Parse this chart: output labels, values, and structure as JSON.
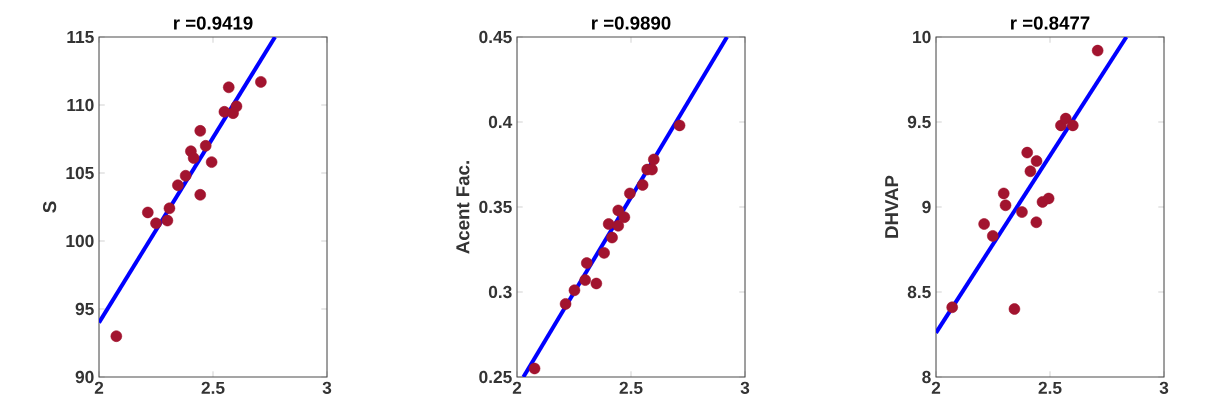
{
  "chart_data": [
    {
      "type": "scatter",
      "marker": "circle",
      "title": "r =0.9419",
      "ylabel": "S",
      "xlim": [
        2,
        3
      ],
      "ylim": [
        90,
        115
      ],
      "xticks": [
        2,
        2.5,
        3
      ],
      "yticks": [
        90,
        95,
        100,
        105,
        110,
        115
      ],
      "series": [
        {
          "color": "#a2142f",
          "x": [
            2.076,
            2.214,
            2.25,
            2.3,
            2.309,
            2.346,
            2.38,
            2.403,
            2.415,
            2.444,
            2.468,
            2.444,
            2.494,
            2.55,
            2.569,
            2.588,
            2.603,
            2.71
          ],
          "values": [
            93.0,
            102.1,
            101.3,
            101.5,
            102.4,
            104.1,
            104.8,
            106.6,
            106.1,
            108.1,
            107.0,
            103.4,
            105.8,
            109.5,
            111.3,
            109.4,
            109.9,
            111.7
          ]
        },
        {
          "type": "line",
          "marker": "none",
          "color": "#0000ff",
          "x": [
            2,
            2.772
          ],
          "values": [
            94.0,
            115
          ]
        }
      ]
    },
    {
      "type": "scatter",
      "marker": "circle",
      "title": "r =0.9890",
      "ylabel": "Acent Fac.",
      "xlim": [
        2,
        3
      ],
      "ylim": [
        0.25,
        0.45
      ],
      "xticks": [
        2,
        2.5,
        3
      ],
      "yticks": [
        0.25,
        0.3,
        0.35,
        0.4,
        0.45
      ],
      "series": [
        {
          "color": "#a2142f",
          "x": [
            2.077,
            2.213,
            2.252,
            2.299,
            2.306,
            2.348,
            2.382,
            2.417,
            2.402,
            2.444,
            2.444,
            2.471,
            2.495,
            2.551,
            2.571,
            2.592,
            2.6,
            2.713
          ],
          "values": [
            0.255,
            0.293,
            0.301,
            0.307,
            0.317,
            0.305,
            0.323,
            0.332,
            0.34,
            0.339,
            0.348,
            0.344,
            0.358,
            0.363,
            0.372,
            0.372,
            0.378,
            0.398
          ]
        },
        {
          "type": "line",
          "marker": "none",
          "color": "#0000ff",
          "x": [
            2.028,
            2.921
          ],
          "values": [
            0.25,
            0.45
          ]
        }
      ]
    },
    {
      "type": "scatter",
      "marker": "circle",
      "title": "r =0.8477",
      "ylabel": "DHVAP",
      "xlim": [
        2,
        3
      ],
      "ylim": [
        8,
        10
      ],
      "xticks": [
        2,
        2.5,
        3
      ],
      "yticks": [
        8,
        8.5,
        9,
        9.5,
        10
      ],
      "series": [
        {
          "color": "#a2142f",
          "x": [
            2.071,
            2.211,
            2.249,
            2.297,
            2.305,
            2.344,
            2.377,
            2.4,
            2.414,
            2.441,
            2.44,
            2.467,
            2.494,
            2.548,
            2.569,
            2.588,
            2.6,
            2.709
          ],
          "values": [
            8.41,
            8.9,
            8.83,
            9.08,
            9.01,
            8.4,
            8.97,
            9.32,
            9.21,
            9.27,
            8.91,
            9.03,
            9.05,
            9.48,
            9.52,
            null,
            9.48,
            9.92
          ]
        },
        {
          "type": "line",
          "marker": "none",
          "color": "#0000ff",
          "x": [
            2,
            2.835
          ],
          "values": [
            8.26,
            10
          ]
        }
      ]
    }
  ]
}
